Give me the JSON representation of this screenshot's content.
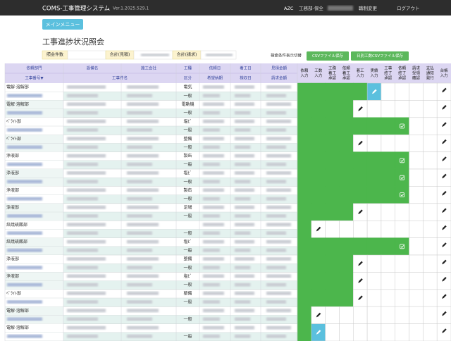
{
  "header": {
    "app": "COMS-工事管理システム",
    "version": "Ver.1.2025.529.1",
    "company": "AZC",
    "dept": "工務部-保全",
    "role_change": "職制変更",
    "logout": "ログアウト"
  },
  "menu_button": "メインメニュー",
  "page_title": "工事進捗状況照会",
  "summary": {
    "count_label": "照会件数",
    "estimate_label": "合計(見積)",
    "invoice_label": "合計(請求)",
    "toggle": "検索条件表示切替",
    "csv_button": "CSVファイル保存",
    "daily_csv_button": "日別工数CSVファイル保存"
  },
  "table": {
    "columns_top": [
      "依頼部門",
      "設備名",
      "施工会社",
      "工種",
      "依頼日",
      "着工日",
      "見積金額"
    ],
    "columns_bottom": [
      "工事番号▼",
      "工事件名",
      "区分",
      "希望納期",
      "検収日",
      "請求金額"
    ],
    "status_columns": [
      [
        "依頼",
        "入力"
      ],
      [
        "工数",
        "入力"
      ],
      [
        "工務",
        "着工",
        "承認"
      ],
      [
        "依頼",
        "着工",
        "承認"
      ],
      [
        "着工",
        "入力"
      ],
      [
        "実績",
        "入力"
      ],
      [
        "工事",
        "終了",
        "承認"
      ],
      [
        "依頼",
        "終了",
        "承認"
      ],
      [
        "請求",
        "受領",
        "確認"
      ],
      [
        "支払",
        "通知",
        "発行"
      ],
      [
        "台帳",
        "入力"
      ]
    ],
    "records": [
      {
        "dept": "電解·溶解部",
        "kind": [
          "電気",
          "一般"
        ],
        "done": 5,
        "mark": "active"
      },
      {
        "dept": "電解·溶解部",
        "kind": [
          "電動機",
          "一般"
        ],
        "done": 4,
        "mark": "pencil"
      },
      {
        "dept": "ﾍﾟﾗｲﾄ部",
        "kind": [
          "塩ﾋﾞ",
          "一般"
        ],
        "done": 8,
        "mark": "check"
      },
      {
        "dept": "ﾍﾟﾗｲﾄ部",
        "kind": [
          "整備",
          "一般"
        ],
        "done": 4,
        "mark": "pencil"
      },
      {
        "dept": "浄液部",
        "kind": [
          "製缶",
          "一般"
        ],
        "done": 8,
        "mark": "check"
      },
      {
        "dept": "浄液部",
        "kind": [
          "塩ﾋﾞ",
          "一般"
        ],
        "done": 8,
        "mark": "check"
      },
      {
        "dept": "浄液部",
        "kind": [
          "製缶",
          "一般"
        ],
        "done": 8,
        "mark": "check"
      },
      {
        "dept": "浄液部",
        "kind": [
          "足場",
          "一般"
        ],
        "done": 4,
        "mark": "pencil"
      },
      {
        "dept": "焙焼硫酸部",
        "kind": [
          null,
          "一般"
        ],
        "done": 1,
        "mark": "pencil"
      },
      {
        "dept": "焙焼硫酸部",
        "kind": [
          "塩ﾋﾞ",
          "一般"
        ],
        "done": 8,
        "mark": "check"
      },
      {
        "dept": "浄液部",
        "kind": [
          "整備",
          "一般"
        ],
        "done": 4,
        "mark": "pencil"
      },
      {
        "dept": "浄液部",
        "kind": [
          "塩ﾋﾞ",
          "一般"
        ],
        "done": 4,
        "mark": "pencil"
      },
      {
        "dept": "ﾍﾟﾗｲﾄ部",
        "kind": [
          "整備",
          "一般"
        ],
        "done": 4,
        "mark": "pencil"
      },
      {
        "dept": "電解·溶解部",
        "kind": [
          null,
          "一般"
        ],
        "done": 1,
        "mark": "pencil"
      },
      {
        "dept": "電解·溶解部",
        "kind": [
          null,
          "一般"
        ],
        "done": 1,
        "mark": "active"
      }
    ]
  }
}
